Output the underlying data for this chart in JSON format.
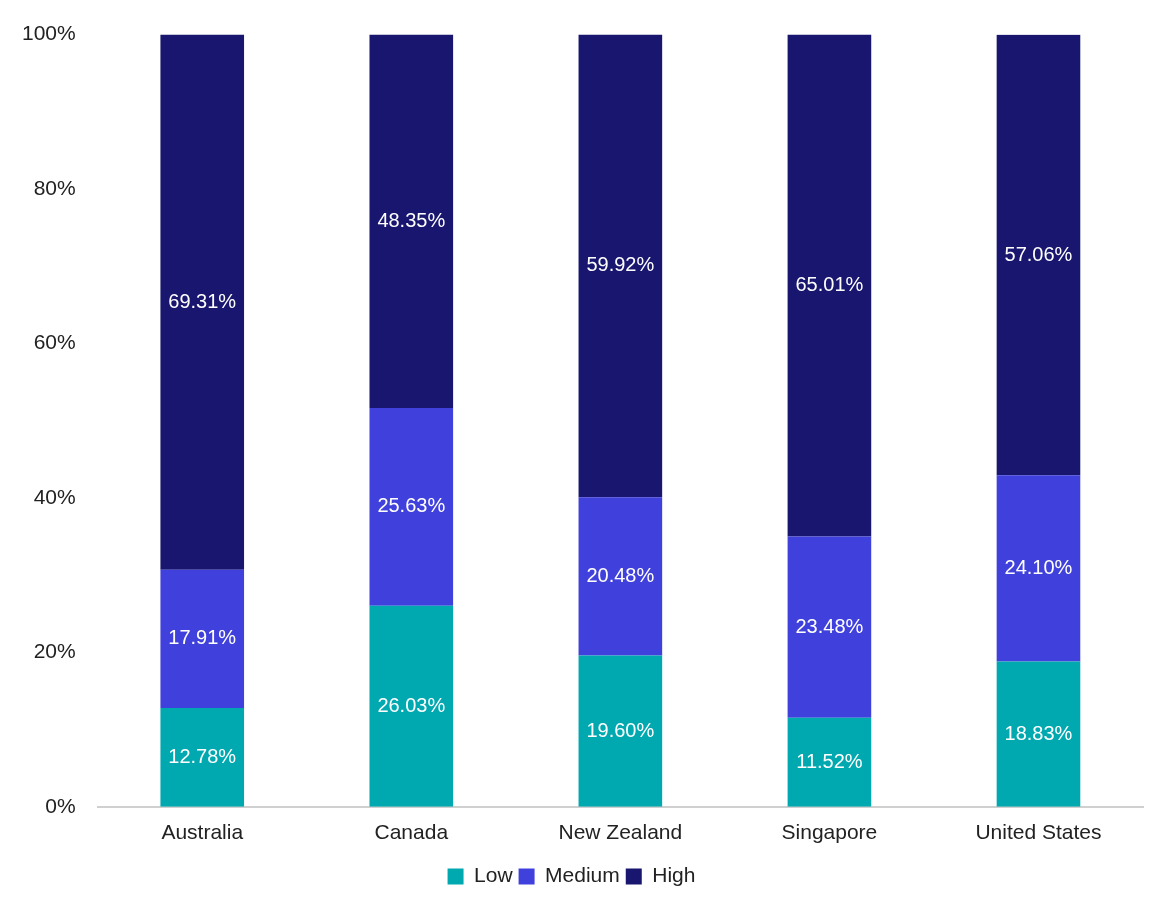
{
  "chart_data": {
    "type": "bar",
    "stacked": true,
    "categories": [
      "Australia",
      "Canada",
      "New Zealand",
      "Singapore",
      "United States"
    ],
    "series": [
      {
        "name": "Low",
        "color": "#00a8b0",
        "values": [
          12.78,
          26.03,
          19.6,
          11.52,
          18.83
        ],
        "value_labels": [
          "12.78%",
          "26.03%",
          "19.60%",
          "11.52%",
          "18.83%"
        ]
      },
      {
        "name": "Medium",
        "color": "#4040dc",
        "values": [
          17.91,
          25.63,
          20.48,
          23.48,
          24.1
        ],
        "value_labels": [
          "17.91%",
          "25.63%",
          "20.48%",
          "23.48%",
          "24.10%"
        ]
      },
      {
        "name": "High",
        "color": "#18166e",
        "values": [
          69.31,
          48.35,
          59.92,
          65.01,
          57.06
        ],
        "value_labels": [
          "69.31%",
          "48.35%",
          "59.92%",
          "65.01%",
          "57.06%"
        ]
      }
    ],
    "ylim": [
      0,
      100
    ],
    "yticks": [
      {
        "value": 0,
        "label": "0%"
      },
      {
        "value": 20,
        "label": "20%"
      },
      {
        "value": 40,
        "label": "40%"
      },
      {
        "value": 60,
        "label": "60%"
      },
      {
        "value": 80,
        "label": "80%"
      },
      {
        "value": 100,
        "label": "100%"
      }
    ],
    "grid": false,
    "legend": "bottom"
  }
}
